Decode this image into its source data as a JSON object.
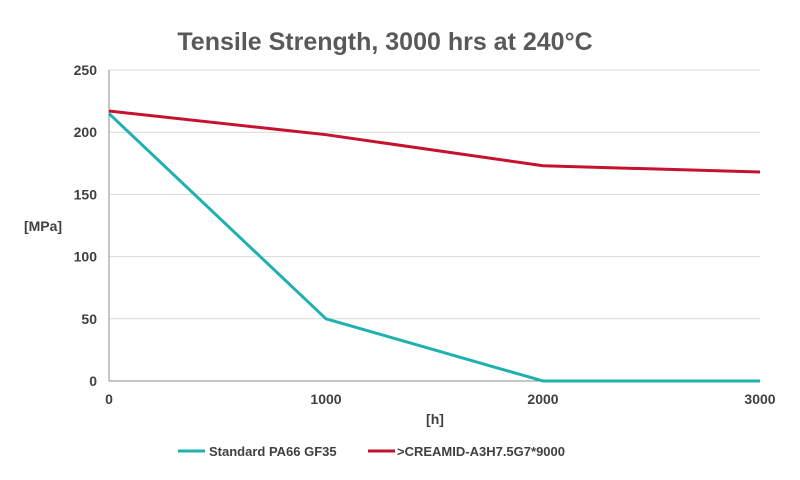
{
  "chart_data": {
    "type": "line",
    "title": "Tensile Strength, 3000 hrs at 240°C",
    "xlabel": "[h]",
    "ylabel": "[MPa]",
    "x": [
      0,
      1000,
      2000,
      3000
    ],
    "xlim": [
      0,
      3000
    ],
    "ylim": [
      0,
      250
    ],
    "xticks": [
      "0",
      "1000",
      "2000",
      "3000"
    ],
    "yticks": [
      "0",
      "50",
      "100",
      "150",
      "200",
      "250"
    ],
    "grid": true,
    "legend_position": "bottom",
    "series": [
      {
        "name": "Standard PA66 GF35",
        "color": "#1fb1b1",
        "values": [
          215,
          50,
          0,
          0
        ]
      },
      {
        "name": ">CREAMID-A3H7.5G7*9000",
        "color": "#c4122f",
        "values": [
          217,
          198,
          173,
          168
        ]
      }
    ]
  }
}
